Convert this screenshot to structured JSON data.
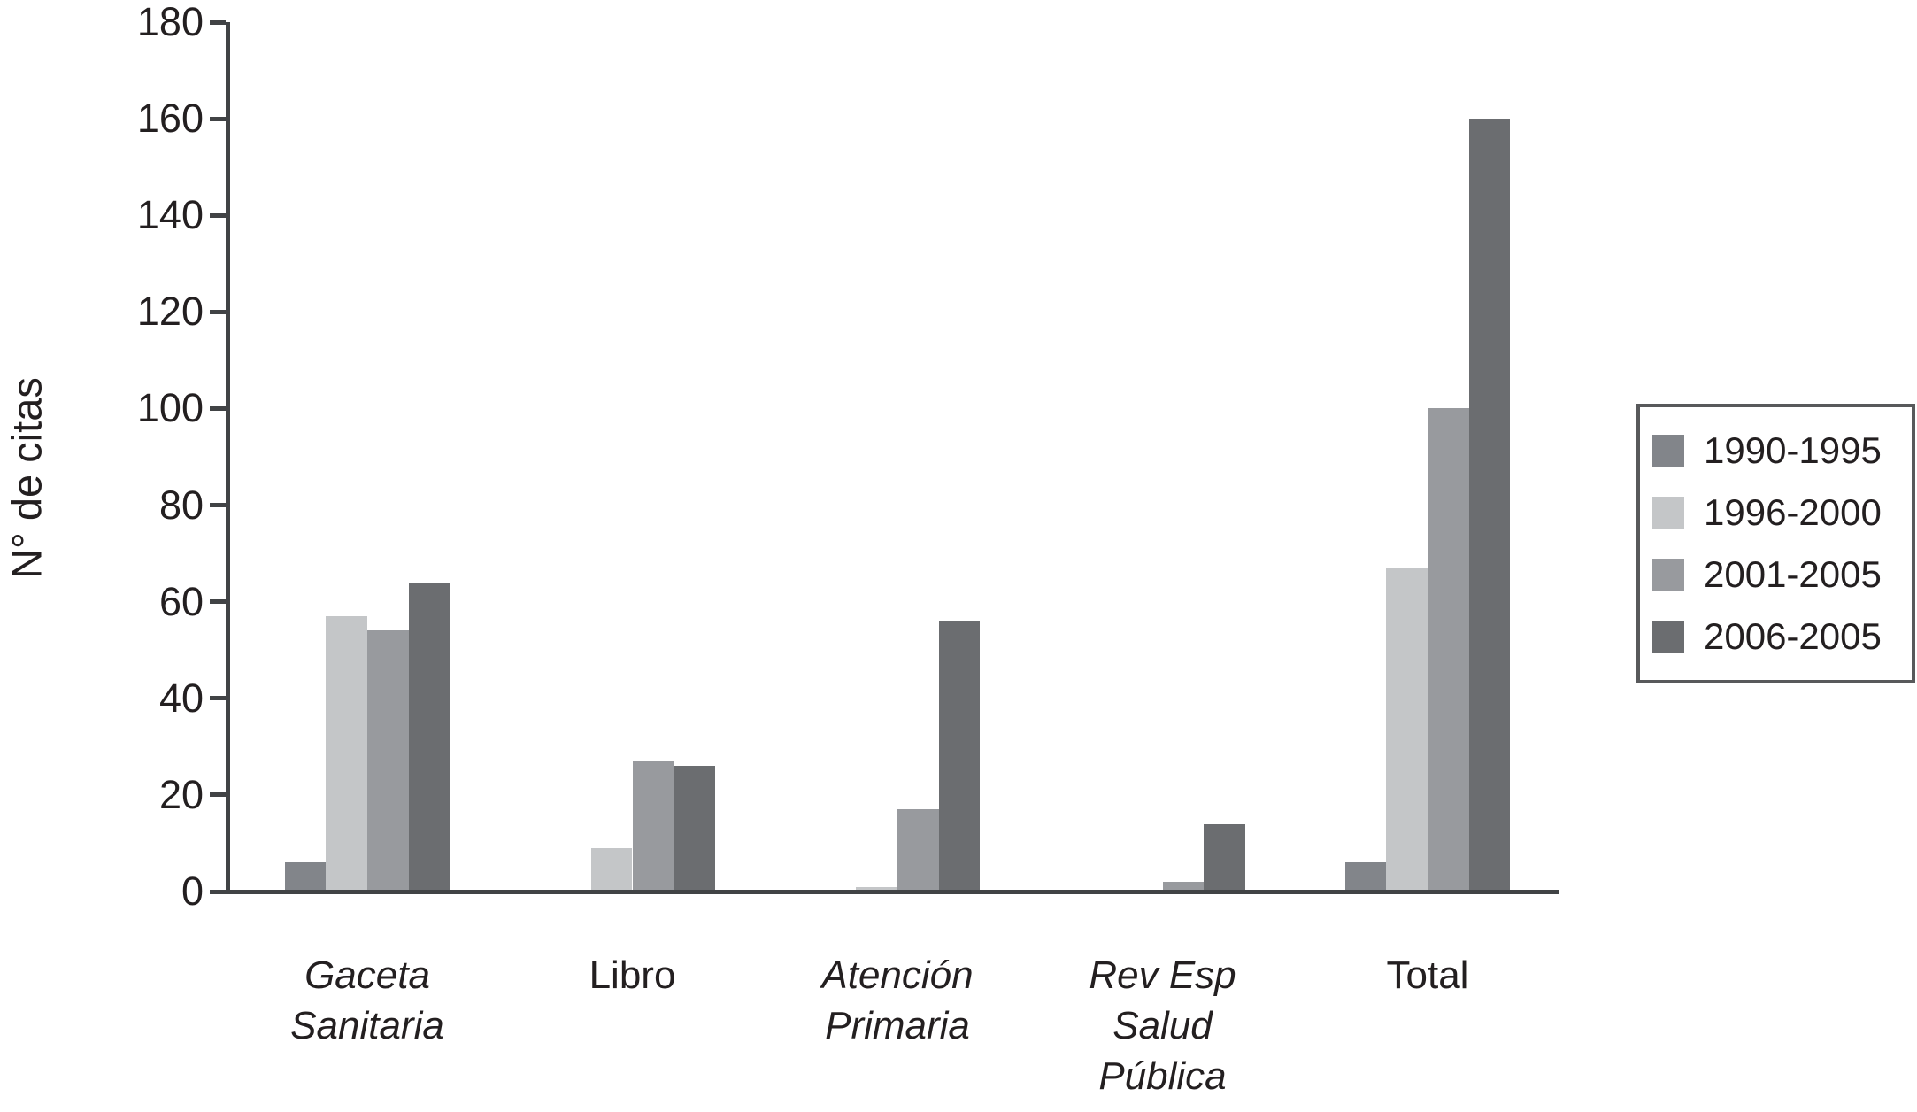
{
  "colors": {
    "background": "#ffffff",
    "axis": "#414345",
    "text": "#231f20",
    "legend_border": "#58595b"
  },
  "chart_data": {
    "type": "bar",
    "title": "",
    "xlabel": "",
    "ylabel": "N° de citas",
    "ylim": [
      0,
      180
    ],
    "ytick_step": 20,
    "yticks": [
      0,
      20,
      40,
      60,
      80,
      100,
      120,
      140,
      160,
      180
    ],
    "grid": false,
    "legend_position": "right",
    "categories": [
      "Gaceta Sanitaria",
      "Libro",
      "Atención Primaria",
      "Rev Esp Salud Pública",
      "Total"
    ],
    "category_lines": [
      [
        "Gaceta",
        "Sanitaria"
      ],
      [
        "Libro"
      ],
      [
        "Atención",
        "Primaria"
      ],
      [
        "Rev Esp",
        "Salud",
        "Pública"
      ],
      [
        "Total"
      ]
    ],
    "category_italic": [
      true,
      false,
      true,
      true,
      false
    ],
    "series": [
      {
        "name": "1990-1995",
        "color": "#82858a",
        "values": [
          6,
          0,
          0,
          0,
          6
        ]
      },
      {
        "name": "1996-2000",
        "color": "#c4c6c8",
        "values": [
          57,
          9,
          1,
          0,
          67
        ]
      },
      {
        "name": "2001-2005",
        "color": "#989a9e",
        "values": [
          54,
          27,
          17,
          2,
          100
        ]
      },
      {
        "name": "2006-2005",
        "color": "#6b6d70",
        "values": [
          64,
          26,
          56,
          14,
          160
        ]
      }
    ]
  }
}
